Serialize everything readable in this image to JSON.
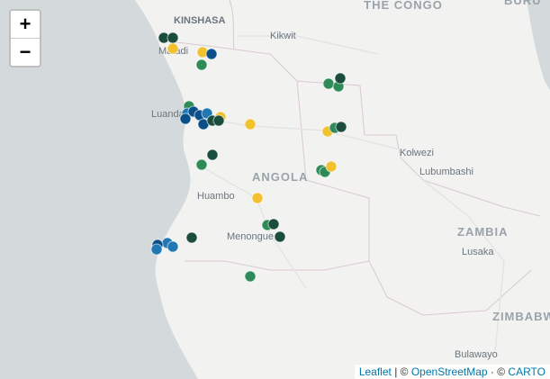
{
  "zoom": {
    "in": "+",
    "out": "−"
  },
  "places": {
    "congo": "THE CONGO",
    "buru": "BURU",
    "kinshasa": "KINSHASA",
    "kikwit": "Kikwit",
    "matadi": "Matadi",
    "luanda": "Luanda",
    "angola": "ANGOLA",
    "kolwezi": "Kolwezi",
    "lubumbashi": "Lubumbashi",
    "huambo": "Huambo",
    "menongue": "Menongue",
    "zambia": "ZAMBIA",
    "lusaka": "Lusaka",
    "zimbabwe": "ZIMBABW",
    "bulawayo": "Bulawayo"
  },
  "attribution": {
    "leaflet": "Leaflet",
    "sep1": "| ©",
    "osm": "OpenStreetMap",
    "sep2": "· ©",
    "carto": "CARTO"
  }
}
